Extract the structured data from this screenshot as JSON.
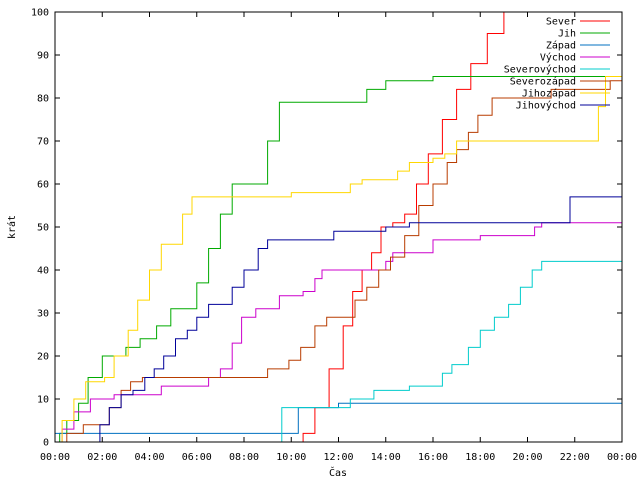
{
  "chart_data": {
    "type": "line",
    "xlabel": "Čas",
    "ylabel": "krát",
    "xlim": [
      0,
      24
    ],
    "ylim": [
      0,
      100
    ],
    "x_ticks": [
      0,
      2,
      4,
      6,
      8,
      10,
      12,
      14,
      16,
      18,
      20,
      22,
      24
    ],
    "x_tick_labels": [
      "00:00",
      "02:00",
      "04:00",
      "06:00",
      "08:00",
      "10:00",
      "12:00",
      "14:00",
      "16:00",
      "18:00",
      "20:00",
      "22:00",
      "00:00"
    ],
    "y_ticks": [
      0,
      10,
      20,
      30,
      40,
      50,
      60,
      70,
      80,
      90,
      100
    ],
    "y_tick_labels": [
      "0",
      "10",
      "20",
      "30",
      "40",
      "50",
      "60",
      "70",
      "80",
      "90",
      "100"
    ],
    "grid": false,
    "legend_position": "top-right",
    "series": [
      {
        "name": "Sever",
        "color": "#ff0000",
        "points": [
          [
            0,
            0
          ],
          [
            9.9,
            0
          ],
          [
            10.5,
            2
          ],
          [
            11.0,
            8
          ],
          [
            11.6,
            17
          ],
          [
            12.2,
            27
          ],
          [
            12.6,
            35
          ],
          [
            13.0,
            40
          ],
          [
            13.4,
            44
          ],
          [
            13.8,
            50
          ],
          [
            14.3,
            51
          ],
          [
            14.8,
            53
          ],
          [
            15.3,
            60
          ],
          [
            15.8,
            67
          ],
          [
            16.4,
            75
          ],
          [
            17.0,
            82
          ],
          [
            17.6,
            88
          ],
          [
            18.3,
            95
          ],
          [
            19.0,
            100
          ]
        ]
      },
      {
        "name": "Jih",
        "color": "#00aa00",
        "points": [
          [
            0,
            0
          ],
          [
            0.2,
            2
          ],
          [
            0.5,
            5
          ],
          [
            1.0,
            9
          ],
          [
            1.4,
            15
          ],
          [
            2.0,
            20
          ],
          [
            3.0,
            22
          ],
          [
            3.6,
            24
          ],
          [
            4.0,
            24
          ],
          [
            4.3,
            27
          ],
          [
            4.9,
            31
          ],
          [
            5.6,
            31
          ],
          [
            6.0,
            37
          ],
          [
            6.5,
            45
          ],
          [
            7.0,
            53
          ],
          [
            7.5,
            60
          ],
          [
            8.6,
            60
          ],
          [
            9.0,
            70
          ],
          [
            9.5,
            79
          ],
          [
            12.0,
            79
          ],
          [
            13.2,
            82
          ],
          [
            14.0,
            84
          ],
          [
            16.0,
            85
          ],
          [
            24.0,
            85
          ],
          [
            24.0,
            100
          ]
        ]
      },
      {
        "name": "Západ",
        "color": "#0070c0",
        "points": [
          [
            0,
            2
          ],
          [
            9.6,
            2
          ],
          [
            10.3,
            8
          ],
          [
            11.0,
            8
          ],
          [
            12.0,
            9
          ],
          [
            24.0,
            9
          ]
        ]
      },
      {
        "name": "Východ",
        "color": "#cc00cc",
        "points": [
          [
            0,
            0
          ],
          [
            0.3,
            3
          ],
          [
            0.8,
            7
          ],
          [
            1.5,
            10
          ],
          [
            2.5,
            11
          ],
          [
            3.5,
            11
          ],
          [
            4.5,
            13
          ],
          [
            6.5,
            15
          ],
          [
            7.0,
            17
          ],
          [
            7.5,
            23
          ],
          [
            7.9,
            29
          ],
          [
            8.5,
            31
          ],
          [
            9.5,
            34
          ],
          [
            10.5,
            35
          ],
          [
            11.0,
            38
          ],
          [
            11.3,
            40
          ],
          [
            13.0,
            40
          ],
          [
            14.0,
            42
          ],
          [
            14.3,
            44
          ],
          [
            16.0,
            47
          ],
          [
            18.0,
            48
          ],
          [
            20.3,
            50
          ],
          [
            20.6,
            51
          ],
          [
            24.0,
            51
          ]
        ]
      },
      {
        "name": "Severovýchod",
        "color": "#00cccc",
        "points": [
          [
            0,
            0
          ],
          [
            9.4,
            0
          ],
          [
            9.6,
            8
          ],
          [
            12.0,
            8
          ],
          [
            12.5,
            10
          ],
          [
            13.5,
            12
          ],
          [
            15.0,
            13
          ],
          [
            16.4,
            16
          ],
          [
            16.8,
            18
          ],
          [
            17.5,
            22
          ],
          [
            18.0,
            26
          ],
          [
            18.6,
            29
          ],
          [
            19.2,
            32
          ],
          [
            19.7,
            36
          ],
          [
            20.2,
            40
          ],
          [
            20.6,
            42
          ],
          [
            24.0,
            42
          ]
        ]
      },
      {
        "name": "Severozápad",
        "color": "#b83c00",
        "points": [
          [
            0,
            0
          ],
          [
            0.5,
            2
          ],
          [
            1.2,
            4
          ],
          [
            1.8,
            4
          ],
          [
            2.3,
            8
          ],
          [
            2.8,
            12
          ],
          [
            3.2,
            14
          ],
          [
            3.7,
            15
          ],
          [
            8.6,
            15
          ],
          [
            9.0,
            17
          ],
          [
            9.9,
            19
          ],
          [
            10.4,
            22
          ],
          [
            11.0,
            27
          ],
          [
            11.5,
            29
          ],
          [
            12.3,
            29
          ],
          [
            12.7,
            33
          ],
          [
            13.2,
            36
          ],
          [
            13.7,
            40
          ],
          [
            14.2,
            43
          ],
          [
            14.8,
            48
          ],
          [
            15.4,
            55
          ],
          [
            16.0,
            60
          ],
          [
            16.6,
            65
          ],
          [
            17.0,
            68
          ],
          [
            17.5,
            72
          ],
          [
            17.9,
            76
          ],
          [
            18.5,
            80
          ],
          [
            20.5,
            80
          ],
          [
            21.0,
            82
          ],
          [
            23.0,
            82
          ],
          [
            23.5,
            84
          ],
          [
            24.0,
            84
          ]
        ]
      },
      {
        "name": "Jihozápad",
        "color": "#ffd700",
        "points": [
          [
            0,
            0
          ],
          [
            0.3,
            5
          ],
          [
            0.8,
            10
          ],
          [
            1.3,
            14
          ],
          [
            2.1,
            15
          ],
          [
            2.5,
            20
          ],
          [
            3.1,
            26
          ],
          [
            3.5,
            33
          ],
          [
            4.0,
            40
          ],
          [
            4.5,
            46
          ],
          [
            5.0,
            46
          ],
          [
            5.4,
            53
          ],
          [
            5.8,
            57
          ],
          [
            9.5,
            57
          ],
          [
            10.0,
            58
          ],
          [
            12.5,
            60
          ],
          [
            13.0,
            61
          ],
          [
            14.5,
            63
          ],
          [
            15.0,
            65
          ],
          [
            16.0,
            66
          ],
          [
            16.5,
            67
          ],
          [
            17.0,
            70
          ],
          [
            22.5,
            70
          ],
          [
            23.0,
            78
          ],
          [
            23.3,
            85
          ],
          [
            24.0,
            85
          ]
        ]
      },
      {
        "name": "Jihovýchod",
        "color": "#000099",
        "points": [
          [
            0,
            0
          ],
          [
            1.6,
            0
          ],
          [
            1.9,
            4
          ],
          [
            2.3,
            8
          ],
          [
            2.8,
            11
          ],
          [
            3.3,
            12
          ],
          [
            3.8,
            15
          ],
          [
            4.2,
            17
          ],
          [
            4.6,
            20
          ],
          [
            5.1,
            24
          ],
          [
            5.6,
            26
          ],
          [
            6.0,
            29
          ],
          [
            6.5,
            32
          ],
          [
            7.0,
            32
          ],
          [
            7.5,
            36
          ],
          [
            8.0,
            40
          ],
          [
            8.6,
            45
          ],
          [
            9.0,
            47
          ],
          [
            11.0,
            47
          ],
          [
            11.8,
            49
          ],
          [
            14.0,
            50
          ],
          [
            15.0,
            51
          ],
          [
            16.0,
            51
          ],
          [
            21.5,
            51
          ],
          [
            21.8,
            57
          ],
          [
            24.0,
            57
          ]
        ]
      }
    ]
  }
}
